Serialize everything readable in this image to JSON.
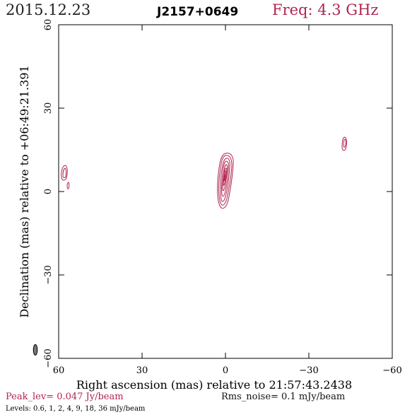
{
  "header": {
    "date": "2015.12.23",
    "source": "J2157+0649",
    "frequency": "Freq: 4.3 GHz"
  },
  "axes": {
    "xlabel": "Right ascension (mas) relative to 21:57:43.2438",
    "ylabel": "Declination (mas) relative to +06:49:21.391",
    "xticks": [
      "60",
      "30",
      "0",
      "−30",
      "−60"
    ],
    "yticks": [
      "60",
      "30",
      "0",
      "−30",
      "−60"
    ]
  },
  "footer": {
    "peak": "Peak_lev=  0.047 Jy/beam",
    "rms": "Rms_noise=  0.1 mJy/beam",
    "levels": "Levels: 0.6,    1,    2,    4,    9,   18,   36 mJy/beam"
  },
  "colors": {
    "contour": "#b0254f",
    "beam": "#777777"
  }
}
